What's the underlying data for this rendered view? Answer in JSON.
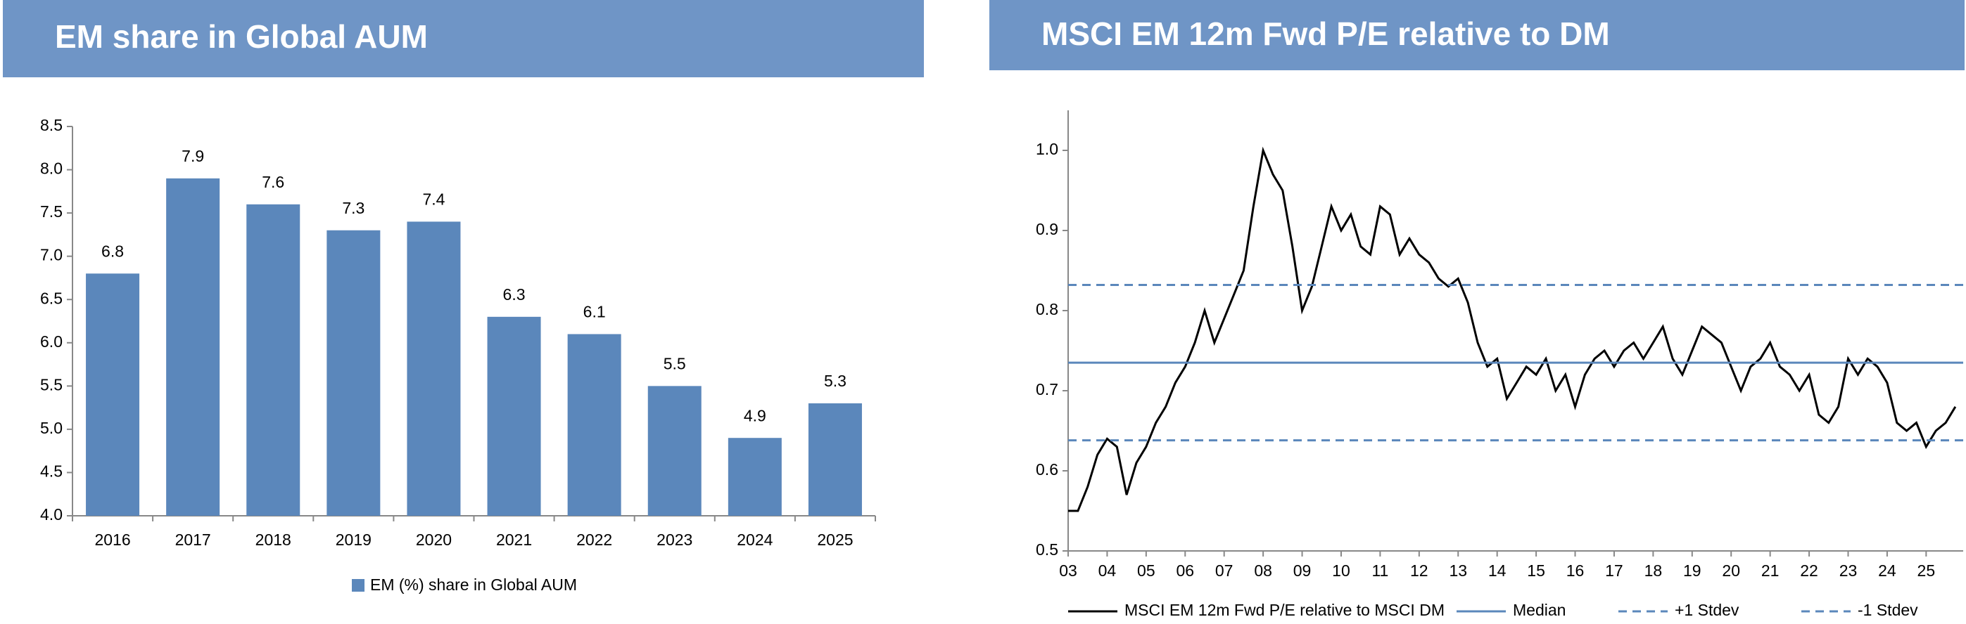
{
  "chart_data": [
    {
      "type": "bar",
      "title": "EM share in Global AUM",
      "categories": [
        "2016",
        "2017",
        "2018",
        "2019",
        "2020",
        "2021",
        "2022",
        "2023",
        "2024",
        "2025"
      ],
      "series": [
        {
          "name": "EM (%) share in Global AUM",
          "color": "#5b87bb",
          "values": [
            6.8,
            7.9,
            7.6,
            7.3,
            7.4,
            6.3,
            6.1,
            5.5,
            4.9,
            5.3
          ]
        }
      ],
      "ylim": [
        4,
        8.5
      ],
      "yticks": [
        {
          "value": 4,
          "label": "4.0"
        },
        4.5,
        {
          "value": 5,
          "label": "5.0"
        },
        5.5,
        {
          "value": 6,
          "label": "6.0"
        },
        6.5,
        {
          "value": 7,
          "label": "7.0"
        },
        7.5,
        {
          "value": 8,
          "label": "8.0"
        },
        8.5
      ],
      "legend": "bottom"
    },
    {
      "type": "line",
      "title": "MSCI EM 12m Fwd P/E relative to DM",
      "x": [
        2003,
        2003.25,
        2003.5,
        2003.75,
        2004,
        2004.25,
        2004.5,
        2004.75,
        2005,
        2005.25,
        2005.5,
        2005.75,
        2006,
        2006.25,
        2006.5,
        2006.75,
        2007,
        2007.25,
        2007.5,
        2007.75,
        2008,
        2008.25,
        2008.5,
        2008.75,
        2009,
        2009.25,
        2009.5,
        2009.75,
        2010,
        2010.25,
        2010.5,
        2010.75,
        2011,
        2011.25,
        2011.5,
        2011.75,
        2012,
        2012.25,
        2012.5,
        2012.75,
        2013,
        2013.25,
        2013.5,
        2013.75,
        2014,
        2014.25,
        2014.5,
        2014.75,
        2015,
        2015.25,
        2015.5,
        2015.75,
        2016,
        2016.25,
        2016.5,
        2016.75,
        2017,
        2017.25,
        2017.5,
        2017.75,
        2018,
        2018.25,
        2018.5,
        2018.75,
        2019,
        2019.25,
        2019.5,
        2019.75,
        2020,
        2020.25,
        2020.5,
        2020.75,
        2021,
        2021.25,
        2021.5,
        2021.75,
        2022,
        2022.25,
        2022.5,
        2022.75,
        2023,
        2023.25,
        2023.5,
        2023.75,
        2024,
        2024.25,
        2024.5,
        2024.75,
        2025,
        2025.25,
        2025.5,
        2025.75
      ],
      "series": [
        {
          "name": "MSCI EM 12m Fwd P/E relative to MSCI DM",
          "color": "#000000",
          "style": "solid",
          "values": [
            0.55,
            0.55,
            0.58,
            0.62,
            0.64,
            0.63,
            0.57,
            0.61,
            0.63,
            0.66,
            0.68,
            0.71,
            0.73,
            0.76,
            0.8,
            0.76,
            0.79,
            0.82,
            0.85,
            0.93,
            1.0,
            0.97,
            0.95,
            0.88,
            0.8,
            0.83,
            0.88,
            0.93,
            0.9,
            0.92,
            0.88,
            0.87,
            0.93,
            0.92,
            0.87,
            0.89,
            0.87,
            0.86,
            0.84,
            0.83,
            0.84,
            0.81,
            0.76,
            0.73,
            0.74,
            0.69,
            0.71,
            0.73,
            0.72,
            0.74,
            0.7,
            0.72,
            0.68,
            0.72,
            0.74,
            0.75,
            0.73,
            0.75,
            0.76,
            0.74,
            0.76,
            0.78,
            0.74,
            0.72,
            0.75,
            0.78,
            0.77,
            0.76,
            0.73,
            0.7,
            0.73,
            0.74,
            0.76,
            0.73,
            0.72,
            0.7,
            0.72,
            0.67,
            0.66,
            0.68,
            0.74,
            0.72,
            0.74,
            0.73,
            0.71,
            0.66,
            0.65,
            0.66,
            0.63,
            0.65,
            0.66,
            0.68
          ]
        },
        {
          "name": "Median",
          "color": "#5b87bb",
          "style": "solid",
          "value": 0.735
        },
        {
          "name": "+1 Stdev",
          "color": "#5b87bb",
          "style": "dashed",
          "value": 0.832
        },
        {
          "name": "-1 Stdev",
          "color": "#5b87bb",
          "style": "dashed",
          "value": 0.638
        }
      ],
      "xlim": [
        2003,
        2025.95
      ],
      "xticks": [
        {
          "value": 2003,
          "label": "03"
        },
        {
          "value": 2004,
          "label": "04"
        },
        {
          "value": 2005,
          "label": "05"
        },
        {
          "value": 2006,
          "label": "06"
        },
        {
          "value": 2007,
          "label": "07"
        },
        {
          "value": 2008,
          "label": "08"
        },
        {
          "value": 2009,
          "label": "09"
        },
        {
          "value": 2010,
          "label": "10"
        },
        {
          "value": 2011,
          "label": "11"
        },
        {
          "value": 2012,
          "label": "12"
        },
        {
          "value": 2013,
          "label": "13"
        },
        {
          "value": 2014,
          "label": "14"
        },
        {
          "value": 2015,
          "label": "15"
        },
        {
          "value": 2016,
          "label": "16"
        },
        {
          "value": 2017,
          "label": "17"
        },
        {
          "value": 2018,
          "label": "18"
        },
        {
          "value": 2019,
          "label": "19"
        },
        {
          "value": 2020,
          "label": "20"
        },
        {
          "value": 2021,
          "label": "21"
        },
        {
          "value": 2022,
          "label": "22"
        },
        {
          "value": 2023,
          "label": "23"
        },
        {
          "value": 2024,
          "label": "24"
        },
        {
          "value": 2025,
          "label": "25"
        }
      ],
      "ylim": [
        0.5,
        1.05
      ],
      "yticks": [
        0.5,
        0.6,
        0.7,
        0.8,
        0.9,
        {
          "value": 1,
          "label": "1.0"
        }
      ],
      "legend": "bottom"
    }
  ]
}
